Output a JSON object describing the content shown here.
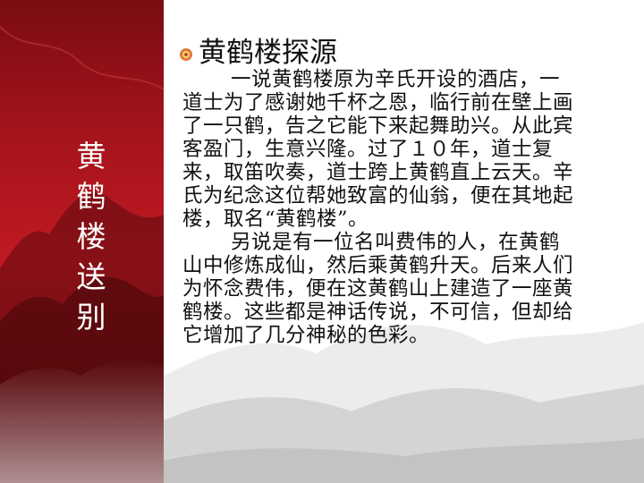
{
  "sidebar": {
    "title_chars": [
      "黄",
      "鹤",
      "楼",
      "送",
      "别"
    ]
  },
  "heading": {
    "title": "黄鹤楼探源",
    "bullet_icon": "flower-bullet-icon"
  },
  "body": {
    "paragraphs": [
      "一说黄鹤楼原为辛氏开设的酒店，一道士为了感谢她千杯之恩，临行前在壁上画了一只鹤，告之它能下来起舞助兴。从此宾客盈门，生意兴隆。过了１０年，道士复来，取笛吹奏，道士跨上黄鹤直上云天。辛氏为纪念这位帮她致富的仙翁，便在其地起楼，取名“黄鹤楼”。",
      "另说是有一位名叫费伟的人，在黄鹤山中修炼成仙，然后乘黄鹤升天。后来人们为怀念费伟，便在这黄鹤山上建造了一座黄鹤楼。这些都是神话传说，不可信，但却给它增加了几分神秘的色彩。"
    ]
  },
  "colors": {
    "sidebar_red": "#b0161e",
    "text": "#111111",
    "bullet": "#c8401e"
  }
}
